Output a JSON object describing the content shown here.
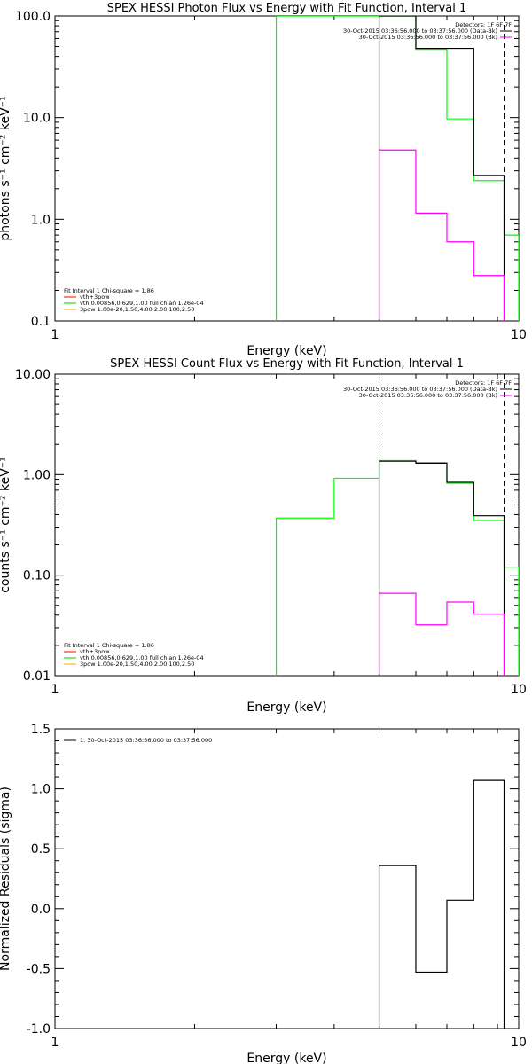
{
  "chart_data": [
    {
      "type": "line",
      "title": "SPEX HESSI Photon Flux vs Energy with Fit Function, Interval 1",
      "xlabel": "Energy (keV)",
      "ylabel": "photons s⁻¹ cm⁻² keV⁻¹",
      "x_scale": "log",
      "y_scale": "log",
      "xlim": [
        1,
        10
      ],
      "ylim": [
        0.1,
        100
      ],
      "x_tick_labels": [
        "1",
        "10"
      ],
      "y_tick_labels": [
        "0.1",
        "1.0",
        "10.0",
        "100.0"
      ],
      "x_ticks": [
        1,
        10
      ],
      "y_ticks": [
        0.1,
        1,
        10,
        100
      ],
      "legend_tr": {
        "header": "Detectors: 1F 6F 7F",
        "lines": [
          {
            "text": "30-Oct-2015 03:36:56.000 to 03:37:56.000 (Data-Bk)",
            "color": "#000000"
          },
          {
            "text": "30-Oct-2015 03:36:56.000 to 03:37:56.000 (Bk)",
            "color": "#ff00ff"
          }
        ]
      },
      "legend_bl": {
        "header": "Fit Interval 1   Chi-square = 1.86",
        "lines": [
          {
            "text": "vth+3pow",
            "color": "#ff0000"
          },
          {
            "text": "vth 0.00856,0.629,1.00  full chian 1.26e-04",
            "color": "#00cc00"
          },
          {
            "text": "3pow 1.00e-20,1.50,4.00,2.00,100,2.50",
            "color": "#ffaa00"
          }
        ]
      },
      "vlines_dashed": [
        9.3
      ],
      "vlines_dotted": [],
      "series": [
        {
          "color": "#00ff00",
          "edges": [
            3.0,
            3.5,
            4.0,
            5.0,
            6.0,
            7.0,
            8.0,
            9.3,
            10.0
          ],
          "values": [
            100,
            130,
            140,
            104,
            47,
            9.7,
            2.4,
            0.7
          ],
          "extend_below": true
        },
        {
          "color": "#000000",
          "edges": [
            5.0,
            6.0,
            7.0,
            8.0,
            9.3
          ],
          "values": [
            100,
            48,
            48,
            2.7
          ],
          "extend_below": true
        },
        {
          "color": "#ff00ff",
          "edges": [
            5.0,
            6.0,
            7.0,
            8.0,
            9.3
          ],
          "values": [
            4.8,
            1.15,
            0.6,
            0.28
          ],
          "extend_below": true
        }
      ]
    },
    {
      "type": "line",
      "title": "SPEX HESSI Count Flux vs Energy with Fit Function, Interval 1",
      "xlabel": "Energy (keV)",
      "ylabel": "counts s⁻¹ cm⁻² keV⁻¹",
      "x_scale": "log",
      "y_scale": "log",
      "xlim": [
        1,
        10
      ],
      "ylim": [
        0.01,
        10
      ],
      "x_tick_labels": [
        "1",
        "10"
      ],
      "y_tick_labels": [
        "0.01",
        "0.10",
        "1.00",
        "10.00"
      ],
      "x_ticks": [
        1,
        10
      ],
      "y_ticks": [
        0.01,
        0.1,
        1,
        10
      ],
      "legend_tr": {
        "header": "Detectors: 1F 6F 7F",
        "lines": [
          {
            "text": "30-Oct-2015 03:36:56.000 to 03:37:56.000 (Data-Bk)",
            "color": "#000000"
          },
          {
            "text": "30-Oct-2015 03:36:56.000 to 03:37:56.000 (Bk)",
            "color": "#ff00ff"
          }
        ]
      },
      "legend_bl": {
        "header": "Fit Interval 1   Chi-square = 1.86",
        "lines": [
          {
            "text": "vth+3pow",
            "color": "#ff0000"
          },
          {
            "text": "vth 0.00856,0.629,1.00  full chian 1.26e-04",
            "color": "#00cc00"
          },
          {
            "text": "3pow 1.00e-20,1.50,4.00,2.00,100,2.50",
            "color": "#ffaa00"
          }
        ]
      },
      "vlines_dashed": [
        9.3
      ],
      "vlines_dotted": [
        5.0
      ],
      "series": [
        {
          "color": "#00ff00",
          "edges": [
            3.0,
            4.0,
            5.0,
            6.0,
            7.0,
            8.0,
            9.3,
            10.0
          ],
          "values": [
            0.37,
            0.92,
            1.38,
            1.32,
            0.82,
            0.35,
            0.12
          ],
          "extend_below": true
        },
        {
          "color": "#000000",
          "edges": [
            5.0,
            6.0,
            7.0,
            8.0,
            9.3
          ],
          "values": [
            1.36,
            1.3,
            0.84,
            0.39
          ],
          "extend_below": true
        },
        {
          "color": "#ff00ff",
          "edges": [
            5.0,
            6.0,
            7.0,
            8.0,
            9.3
          ],
          "values": [
            0.066,
            0.032,
            0.054,
            0.041
          ],
          "extend_below": true
        }
      ]
    },
    {
      "type": "line",
      "title": "",
      "xlabel": "Energy (keV)",
      "ylabel": "Normalized Residuals (sigma)",
      "x_scale": "log",
      "y_scale": "linear",
      "xlim": [
        1,
        10
      ],
      "ylim": [
        -1.0,
        1.5
      ],
      "x_tick_labels": [
        "1",
        "10"
      ],
      "y_tick_labels": [
        "-1.0",
        "-0.5",
        "0.0",
        "0.5",
        "1.0",
        "1.5"
      ],
      "x_ticks": [
        1,
        10
      ],
      "y_ticks": [
        -1.0,
        -0.5,
        0.0,
        0.5,
        1.0,
        1.5
      ],
      "legend_tl": {
        "lines": [
          {
            "text": "1. 30-Oct-2015 03:36:56.000 to 03:37:56.000",
            "color": "#000000"
          }
        ]
      },
      "vlines_dashed": [],
      "vlines_dotted": [],
      "series": [
        {
          "color": "#000000",
          "edges": [
            5.0,
            6.0,
            7.0,
            8.0,
            9.3
          ],
          "values": [
            0.36,
            -0.53,
            0.07,
            1.07
          ],
          "extend_below": true
        }
      ]
    }
  ]
}
